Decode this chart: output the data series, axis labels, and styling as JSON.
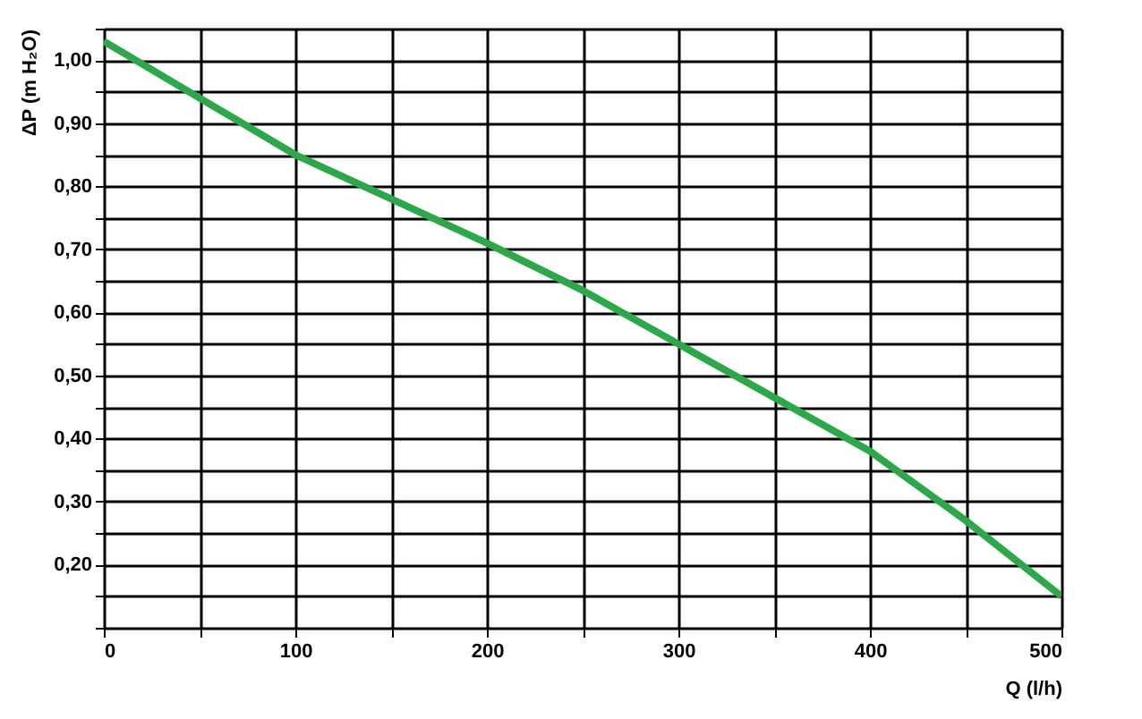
{
  "chart_data": {
    "type": "line",
    "xlabel": "Q (l/h)",
    "ylabel": "ΔP (m H₂O)",
    "x": [
      0,
      50,
      100,
      150,
      200,
      250,
      300,
      350,
      400,
      450,
      500
    ],
    "series": [
      {
        "color": "#2ca84a",
        "values": [
          1.03,
          0.94,
          0.85,
          0.78,
          0.71,
          0.635,
          0.55,
          0.465,
          0.38,
          0.27,
          0.15
        ]
      }
    ],
    "xlim": [
      0,
      500
    ],
    "ylim": [
      0.1,
      1.05
    ],
    "xticks": [
      0,
      {
        "value": 50,
        "label": null
      },
      100,
      {
        "value": 150,
        "label": null
      },
      200,
      {
        "value": 250,
        "label": null
      },
      300,
      {
        "value": 350,
        "label": null
      },
      400,
      {
        "value": 450,
        "label": null
      },
      500
    ],
    "yticks": [
      {
        "value": 0.1,
        "label": null
      },
      {
        "value": 0.15,
        "label": null
      },
      {
        "value": 0.2,
        "label": "0,20"
      },
      {
        "value": 0.25,
        "label": null
      },
      {
        "value": 0.3,
        "label": "0,30"
      },
      {
        "value": 0.35,
        "label": null
      },
      {
        "value": 0.4,
        "label": "0,40"
      },
      {
        "value": 0.45,
        "label": null
      },
      {
        "value": 0.5,
        "label": "0,50"
      },
      {
        "value": 0.55,
        "label": null
      },
      {
        "value": 0.6,
        "label": "0,60"
      },
      {
        "value": 0.65,
        "label": null
      },
      {
        "value": 0.7,
        "label": "0,70"
      },
      {
        "value": 0.75,
        "label": null
      },
      {
        "value": 0.8,
        "label": "0,80"
      },
      {
        "value": 0.85,
        "label": null
      },
      {
        "value": 0.9,
        "label": "0,90"
      },
      {
        "value": 0.95,
        "label": null
      },
      {
        "value": 1.0,
        "label": "1,00"
      },
      {
        "value": 1.05,
        "label": null
      }
    ],
    "grid": true,
    "marker": "none",
    "line_style": "solid"
  }
}
